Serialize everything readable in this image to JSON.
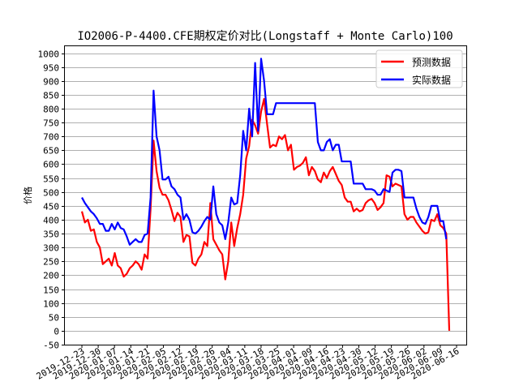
{
  "chart_data": {
    "type": "line",
    "title": "IO2006-P-4400.CFE期权定价对比(Longstaff + Monte Carlo)100",
    "xlabel": "",
    "ylabel": "价格",
    "ylim": [
      -50,
      1025
    ],
    "yticks": [
      -50,
      0,
      50,
      100,
      150,
      200,
      250,
      300,
      350,
      400,
      450,
      500,
      550,
      600,
      650,
      700,
      750,
      800,
      850,
      900,
      950,
      1000
    ],
    "xticks": [
      "2019-12-23",
      "2019-12-30",
      "2020-01-07",
      "2020-01-14",
      "2020-01-21",
      "2020-02-05",
      "2020-02-12",
      "2020-02-19",
      "2020-02-26",
      "2020-03-04",
      "2020-03-11",
      "2020-03-18",
      "2020-03-25",
      "2020-04-01",
      "2020-04-09",
      "2020-04-16",
      "2020-04-23",
      "2020-04-30",
      "2020-05-12",
      "2020-05-19",
      "2020-05-26",
      "2020-06-02",
      "2020-06-09",
      "2020-06-16"
    ],
    "grid": "horizontal",
    "legend": "top-right",
    "series": [
      {
        "name": "预测数据",
        "color": "#ff0000",
        "values": [
          430,
          390,
          400,
          360,
          365,
          320,
          300,
          240,
          250,
          260,
          235,
          280,
          235,
          225,
          195,
          205,
          225,
          235,
          250,
          240,
          220,
          275,
          260,
          440,
          685,
          575,
          515,
          490,
          490,
          470,
          435,
          395,
          425,
          410,
          320,
          345,
          340,
          245,
          235,
          260,
          275,
          320,
          305,
          460,
          330,
          310,
          290,
          275,
          185,
          250,
          390,
          305,
          370,
          420,
          490,
          620,
          665,
          760,
          740,
          710,
          790,
          835,
          745,
          660,
          670,
          665,
          700,
          690,
          705,
          650,
          670,
          580,
          590,
          595,
          605,
          625,
          560,
          590,
          575,
          545,
          535,
          570,
          550,
          575,
          590,
          565,
          540,
          525,
          480,
          465,
          465,
          430,
          440,
          430,
          435,
          460,
          470,
          475,
          460,
          435,
          445,
          460,
          560,
          555,
          520,
          530,
          525,
          520,
          420,
          400,
          410,
          410,
          390,
          375,
          360,
          350,
          355,
          400,
          395,
          420,
          380,
          370,
          350,
          0
        ]
      },
      {
        "name": "实际数据",
        "color": "#0000ff",
        "values": [
          480,
          460,
          445,
          430,
          420,
          405,
          385,
          385,
          360,
          360,
          385,
          365,
          390,
          370,
          365,
          340,
          310,
          320,
          330,
          320,
          320,
          345,
          350,
          480,
          865,
          700,
          650,
          545,
          545,
          555,
          520,
          510,
          490,
          480,
          400,
          420,
          400,
          355,
          350,
          360,
          375,
          395,
          410,
          400,
          520,
          420,
          390,
          380,
          330,
          390,
          480,
          455,
          460,
          560,
          720,
          650,
          800,
          700,
          965,
          720,
          980,
          900,
          780,
          780,
          780,
          820,
          820,
          820,
          820,
          820,
          820,
          820,
          820,
          820,
          820,
          820,
          820,
          820,
          820,
          680,
          650,
          650,
          680,
          690,
          650,
          670,
          670,
          610,
          610,
          610,
          610,
          530,
          530,
          530,
          530,
          510,
          510,
          510,
          505,
          490,
          490,
          510,
          505,
          500,
          570,
          580,
          580,
          575,
          480,
          480,
          480,
          480,
          440,
          410,
          390,
          385,
          410,
          450,
          450,
          450,
          395,
          395,
          330
        ]
      }
    ]
  }
}
